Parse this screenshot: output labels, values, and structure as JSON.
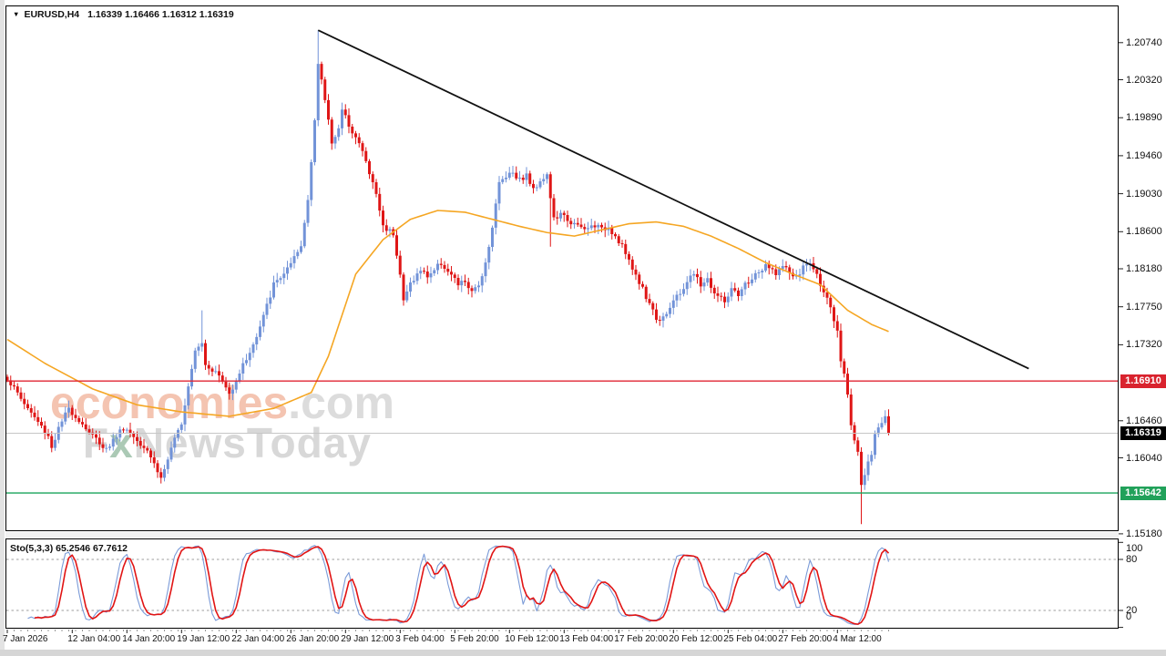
{
  "header": {
    "symbol": "EURUSD,H4",
    "ohlc": "1.16339 1.16466 1.16312 1.16319",
    "collapse_icon": "symbol-collapse-triangle"
  },
  "watermark": {
    "brand": "economies",
    "brand_suffix": ".com",
    "line2_f": "F",
    "line2_x": "x",
    "line2_rest": "NewsToday",
    "brand_color": "#f4c4b1",
    "gray_color": "#d8d8d8"
  },
  "indicator": {
    "label": "Sto(5,3,3) 65.2546 67.7612",
    "name": "Stochastic Oscillator",
    "k_period": 5,
    "d_period": 3,
    "slowing": 3,
    "k_value": 65.2546,
    "d_value": 67.7612
  },
  "chart_data": {
    "type": "candlestick",
    "title": "EURUSD,H4",
    "symbol": "EURUSD",
    "timeframe": "H4",
    "current_ohlc": {
      "open": 1.16339,
      "high": 1.16466,
      "low": 1.16312,
      "close": 1.16319
    },
    "ylim": [
      1.1521,
      1.2115
    ],
    "bars_total": 259,
    "bull_color": "#7293d8",
    "bear_color": "#df1616",
    "ma_color": "#f5a623",
    "trendline_color": "#111111",
    "y_axis_ticks": [
      {
        "label": "1.20740",
        "price": 1.2074
      },
      {
        "label": "1.20320",
        "price": 1.2032
      },
      {
        "label": "1.19890",
        "price": 1.1989
      },
      {
        "label": "1.19460",
        "price": 1.1946
      },
      {
        "label": "1.19030",
        "price": 1.1903
      },
      {
        "label": "1.18600",
        "price": 1.186
      },
      {
        "label": "1.18180",
        "price": 1.1818
      },
      {
        "label": "1.17750",
        "price": 1.1775
      },
      {
        "label": "1.17320",
        "price": 1.1732
      },
      {
        "label": "1.16460",
        "price": 1.1646
      },
      {
        "label": "1.16040",
        "price": 1.1604
      },
      {
        "label": "1.15180",
        "price": 1.1518
      }
    ],
    "x_axis_labels": [
      {
        "bar": 0,
        "label": "7 Jan 2026"
      },
      {
        "bar": 19,
        "label": "12 Jan 04:00"
      },
      {
        "bar": 35,
        "label": "14 Jan 20:00"
      },
      {
        "bar": 51,
        "label": "19 Jan 12:00"
      },
      {
        "bar": 67,
        "label": "22 Jan 04:00"
      },
      {
        "bar": 83,
        "label": "26 Jan 20:00"
      },
      {
        "bar": 99,
        "label": "29 Jan 12:00"
      },
      {
        "bar": 115,
        "label": "3 Feb 04:00"
      },
      {
        "bar": 131,
        "label": "5 Feb 20:00"
      },
      {
        "bar": 147,
        "label": "10 Feb 12:00"
      },
      {
        "bar": 163,
        "label": "13 Feb 04:00"
      },
      {
        "bar": 179,
        "label": "17 Feb 20:00"
      },
      {
        "bar": 195,
        "label": "20 Feb 12:00"
      },
      {
        "bar": 211,
        "label": "25 Feb 04:00"
      },
      {
        "bar": 227,
        "label": "27 Feb 20:00"
      },
      {
        "bar": 243,
        "label": "4 Mar 12:00"
      }
    ],
    "levels": [
      {
        "label": "1.16910",
        "price": 1.1691,
        "line_color": "#e02433",
        "box_color": "#d9232e",
        "role": "resistance-line"
      },
      {
        "label": "1.16319",
        "price": 1.16319,
        "line_color": "#c6c6c6",
        "box_color": "#000000",
        "role": "current-bid-line"
      },
      {
        "label": "1.15642",
        "price": 1.15642,
        "line_color": "#1aa35c",
        "box_color": "#21a15a",
        "role": "support-line"
      }
    ],
    "trendline": {
      "bar1": 91,
      "price1": 1.2088,
      "bar2": 299,
      "price2": 1.1705
    },
    "price_path": [
      [
        0,
        1.1694
      ],
      [
        6,
        1.166
      ],
      [
        12,
        1.1629
      ],
      [
        13,
        1.1616
      ],
      [
        15,
        1.1637
      ],
      [
        18,
        1.166
      ],
      [
        25,
        1.1629
      ],
      [
        29,
        1.1614
      ],
      [
        34,
        1.1639
      ],
      [
        41,
        1.1614
      ],
      [
        45,
        1.1581
      ],
      [
        51,
        1.1645
      ],
      [
        55,
        1.1728
      ],
      [
        57,
        1.1735
      ],
      [
        58,
        1.1711
      ],
      [
        62,
        1.1697
      ],
      [
        65,
        1.1676
      ],
      [
        68,
        1.1701
      ],
      [
        73,
        1.174
      ],
      [
        78,
        1.18
      ],
      [
        83,
        1.1822
      ],
      [
        86,
        1.1843
      ],
      [
        88,
        1.1897
      ],
      [
        90,
        1.1987
      ],
      [
        91,
        1.2049
      ],
      [
        93,
        1.201
      ],
      [
        95,
        1.1962
      ],
      [
        97,
        1.1977
      ],
      [
        98,
        1.1996
      ],
      [
        100,
        1.1982
      ],
      [
        102,
        1.1967
      ],
      [
        104,
        1.1951
      ],
      [
        106,
        1.1926
      ],
      [
        108,
        1.1903
      ],
      [
        110,
        1.1866
      ],
      [
        113,
        1.1859
      ],
      [
        115,
        1.1812
      ],
      [
        116,
        1.1781
      ],
      [
        118,
        1.1802
      ],
      [
        121,
        1.1816
      ],
      [
        123,
        1.181
      ],
      [
        125,
        1.1817
      ],
      [
        127,
        1.1825
      ],
      [
        130,
        1.181
      ],
      [
        132,
        1.18
      ],
      [
        134,
        1.1804
      ],
      [
        136,
        1.179
      ],
      [
        138,
        1.18
      ],
      [
        140,
        1.1825
      ],
      [
        142,
        1.1866
      ],
      [
        144,
        1.1915
      ],
      [
        146,
        1.1924
      ],
      [
        148,
        1.1928
      ],
      [
        150,
        1.1919
      ],
      [
        152,
        1.1924
      ],
      [
        154,
        1.1907
      ],
      [
        156,
        1.1919
      ],
      [
        158,
        1.1924
      ],
      [
        160,
        1.1874
      ],
      [
        162,
        1.1879
      ],
      [
        164,
        1.1874
      ],
      [
        166,
        1.1868
      ],
      [
        169,
        1.1862
      ],
      [
        172,
        1.1868
      ],
      [
        174,
        1.1862
      ],
      [
        176,
        1.1866
      ],
      [
        178,
        1.1855
      ],
      [
        180,
        1.1845
      ],
      [
        182,
        1.1825
      ],
      [
        185,
        1.1804
      ],
      [
        187,
        1.1786
      ],
      [
        189,
        1.1773
      ],
      [
        190,
        1.1759
      ],
      [
        193,
        1.1769
      ],
      [
        195,
        1.1781
      ],
      [
        197,
        1.179
      ],
      [
        199,
        1.1804
      ],
      [
        201,
        1.1812
      ],
      [
        203,
        1.18
      ],
      [
        205,
        1.1806
      ],
      [
        207,
        1.179
      ],
      [
        210,
        1.1781
      ],
      [
        212,
        1.1794
      ],
      [
        214,
        1.1786
      ],
      [
        216,
        1.18
      ],
      [
        218,
        1.1807
      ],
      [
        220,
        1.1814
      ],
      [
        222,
        1.182
      ],
      [
        225,
        1.1814
      ],
      [
        227,
        1.182
      ],
      [
        229,
        1.1814
      ],
      [
        231,
        1.1807
      ],
      [
        233,
        1.182
      ],
      [
        235,
        1.1825
      ],
      [
        237,
        1.181
      ],
      [
        239,
        1.1794
      ],
      [
        241,
        1.1771
      ],
      [
        243,
        1.1745
      ],
      [
        244,
        1.1714
      ],
      [
        246,
        1.1678
      ],
      [
        247,
        1.1642
      ],
      [
        249,
        1.1611
      ],
      [
        250,
        1.1573
      ],
      [
        251,
        1.1585
      ],
      [
        253,
        1.1608
      ],
      [
        254,
        1.1629
      ],
      [
        256,
        1.1645
      ],
      [
        257,
        1.1652
      ],
      [
        258,
        1.16319
      ]
    ],
    "wick_overrides": [
      {
        "bar": 0,
        "side": "high",
        "price": 1.1697
      },
      {
        "bar": 45,
        "side": "low",
        "price": 1.1575
      },
      {
        "bar": 57,
        "side": "high",
        "price": 1.1771
      },
      {
        "bar": 91,
        "side": "high",
        "price": 1.2088
      },
      {
        "bar": 159,
        "side": "low",
        "price": 1.1843
      },
      {
        "bar": 250,
        "side": "low",
        "price": 1.1529
      }
    ],
    "ma_path": [
      [
        0,
        1.1738
      ],
      [
        11,
        1.1711
      ],
      [
        25,
        1.1682
      ],
      [
        38,
        1.1664
      ],
      [
        51,
        1.1656
      ],
      [
        65,
        1.1651
      ],
      [
        78,
        1.166
      ],
      [
        89,
        1.1678
      ],
      [
        94,
        1.1719
      ],
      [
        102,
        1.1812
      ],
      [
        110,
        1.1851
      ],
      [
        118,
        1.1874
      ],
      [
        126,
        1.1884
      ],
      [
        134,
        1.1882
      ],
      [
        142,
        1.1874
      ],
      [
        150,
        1.1866
      ],
      [
        158,
        1.1859
      ],
      [
        166,
        1.1855
      ],
      [
        174,
        1.1862
      ],
      [
        182,
        1.1869
      ],
      [
        190,
        1.1871
      ],
      [
        198,
        1.1866
      ],
      [
        206,
        1.1855
      ],
      [
        214,
        1.1841
      ],
      [
        222,
        1.1825
      ],
      [
        230,
        1.1812
      ],
      [
        238,
        1.18
      ],
      [
        246,
        1.1771
      ],
      [
        253,
        1.1755
      ],
      [
        258,
        1.1747
      ]
    ],
    "stochastic": {
      "k_period": 5,
      "slowing": 3,
      "d_period": 3,
      "k_value": 65.2546,
      "d_value": 67.7612,
      "k_color": "#7b9bd8",
      "d_color": "#e11414",
      "levels": [
        {
          "label": "100",
          "value": 100,
          "dashed": false
        },
        {
          "label": "80",
          "value": 80,
          "dashed": true
        },
        {
          "label": "20",
          "value": 20,
          "dashed": true
        },
        {
          "label": "0",
          "value": 0,
          "dashed": false
        }
      ]
    }
  }
}
